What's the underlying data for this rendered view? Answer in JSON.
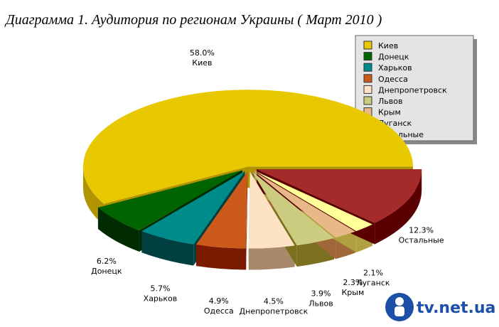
{
  "chart_data": {
    "type": "pie3d",
    "title": "Диаграмма 1. Аудитория по регионам Украины ( Март 2010 )",
    "categories": [
      "Киев",
      "Донецк",
      "Харьков",
      "Одесса",
      "Днепропетровск",
      "Львов",
      "Крым",
      "Луганск",
      "Остальные"
    ],
    "values": [
      58.0,
      6.2,
      5.7,
      4.9,
      4.5,
      3.9,
      2.3,
      2.1,
      12.3
    ],
    "value_labels": [
      "58.0%",
      "6.2%",
      "5.7%",
      "4.9%",
      "4.5%",
      "3.9%",
      "2.3%",
      "2.1%",
      "12.3%"
    ],
    "colors": [
      "#e8c800",
      "#006400",
      "#008b8b",
      "#cc5a1a",
      "#fde3c4",
      "#cccc80",
      "#e8b888",
      "#ffff99",
      "#a52a2a"
    ],
    "side_colors": [
      "#b09400",
      "#002a00",
      "#004040",
      "#7a1a00",
      "#a88a6a",
      "#7a7020",
      "#a06838",
      "#b0a040",
      "#5a0000"
    ],
    "legend": "top-right",
    "logo": "tv.net.ua"
  }
}
